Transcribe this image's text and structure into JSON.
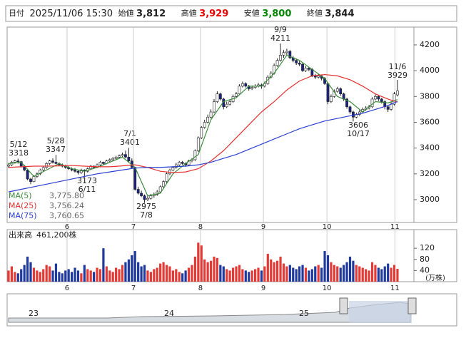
{
  "header": {
    "date_label": "日付",
    "datetime": "2025/11/06 15:30",
    "open_label": "始値",
    "open": "3,812",
    "high_label": "高値",
    "high": "3,929",
    "low_label": "安値",
    "low": "3,800",
    "close_label": "終値",
    "close": "3,844"
  },
  "chart_data": {
    "type": "candlestick",
    "candles": [
      [
        3260,
        3285,
        3245,
        3270
      ],
      [
        3270,
        3300,
        3260,
        3290
      ],
      [
        3290,
        3310,
        3280,
        3300
      ],
      [
        3300,
        3318,
        3280,
        3295
      ],
      [
        3295,
        3300,
        3250,
        3260
      ],
      [
        3260,
        3270,
        3220,
        3230
      ],
      [
        3230,
        3235,
        3150,
        3160
      ],
      [
        3160,
        3170,
        3120,
        3140
      ],
      [
        3140,
        3190,
        3135,
        3180
      ],
      [
        3180,
        3210,
        3170,
        3200
      ],
      [
        3200,
        3240,
        3190,
        3230
      ],
      [
        3230,
        3260,
        3220,
        3250
      ],
      [
        3250,
        3290,
        3240,
        3280
      ],
      [
        3280,
        3310,
        3270,
        3300
      ],
      [
        3300,
        3320,
        3280,
        3290
      ],
      [
        3290,
        3347,
        3275,
        3280
      ],
      [
        3280,
        3290,
        3260,
        3270
      ],
      [
        3270,
        3280,
        3250,
        3260
      ],
      [
        3260,
        3270,
        3240,
        3250
      ],
      [
        3250,
        3260,
        3230,
        3240
      ],
      [
        3240,
        3250,
        3220,
        3230
      ],
      [
        3230,
        3245,
        3210,
        3220
      ],
      [
        3220,
        3230,
        3195,
        3210
      ],
      [
        3210,
        3240,
        3200,
        3230
      ],
      [
        3230,
        3235,
        3173,
        3220
      ],
      [
        3220,
        3250,
        3210,
        3240
      ],
      [
        3240,
        3270,
        3230,
        3260
      ],
      [
        3260,
        3265,
        3240,
        3250
      ],
      [
        3250,
        3280,
        3245,
        3270
      ],
      [
        3270,
        3300,
        3260,
        3290
      ],
      [
        3290,
        3295,
        3270,
        3280
      ],
      [
        3280,
        3310,
        3275,
        3300
      ],
      [
        3300,
        3320,
        3290,
        3310
      ],
      [
        3310,
        3330,
        3300,
        3320
      ],
      [
        3320,
        3340,
        3310,
        3330
      ],
      [
        3330,
        3350,
        3320,
        3340
      ],
      [
        3340,
        3365,
        3330,
        3350
      ],
      [
        3350,
        3380,
        3320,
        3330
      ],
      [
        3330,
        3401,
        3290,
        3300
      ],
      [
        3300,
        3320,
        3240,
        3250
      ],
      [
        3250,
        3255,
        3070,
        3080
      ],
      [
        3080,
        3100,
        3040,
        3050
      ],
      [
        3050,
        3070,
        3020,
        3030
      ],
      [
        3030,
        3040,
        2975,
        3000
      ],
      [
        3000,
        3030,
        2990,
        3010
      ],
      [
        3010,
        3045,
        3000,
        3030
      ],
      [
        3030,
        3055,
        3015,
        3040
      ],
      [
        3040,
        3075,
        3030,
        3060
      ],
      [
        3060,
        3110,
        3050,
        3100
      ],
      [
        3100,
        3150,
        3090,
        3140
      ],
      [
        3140,
        3210,
        3130,
        3200
      ],
      [
        3200,
        3240,
        3190,
        3230
      ],
      [
        3230,
        3260,
        3220,
        3250
      ],
      [
        3250,
        3285,
        3240,
        3270
      ],
      [
        3270,
        3300,
        3260,
        3290
      ],
      [
        3290,
        3300,
        3270,
        3280
      ],
      [
        3280,
        3290,
        3255,
        3270
      ],
      [
        3270,
        3310,
        3260,
        3300
      ],
      [
        3300,
        3320,
        3290,
        3310
      ],
      [
        3310,
        3390,
        3300,
        3380
      ],
      [
        3380,
        3490,
        3370,
        3480
      ],
      [
        3480,
        3570,
        3470,
        3560
      ],
      [
        3560,
        3620,
        3550,
        3600
      ],
      [
        3600,
        3660,
        3590,
        3640
      ],
      [
        3640,
        3700,
        3630,
        3680
      ],
      [
        3680,
        3780,
        3670,
        3760
      ],
      [
        3760,
        3840,
        3750,
        3820
      ],
      [
        3820,
        3830,
        3770,
        3780
      ],
      [
        3780,
        3790,
        3700,
        3720
      ],
      [
        3720,
        3760,
        3710,
        3740
      ],
      [
        3740,
        3775,
        3730,
        3760
      ],
      [
        3760,
        3815,
        3750,
        3800
      ],
      [
        3800,
        3835,
        3790,
        3820
      ],
      [
        3820,
        3895,
        3810,
        3880
      ],
      [
        3880,
        3915,
        3870,
        3900
      ],
      [
        3900,
        3910,
        3870,
        3880
      ],
      [
        3880,
        3890,
        3845,
        3860
      ],
      [
        3860,
        3885,
        3850,
        3870
      ],
      [
        3870,
        3895,
        3860,
        3880
      ],
      [
        3880,
        3905,
        3870,
        3890
      ],
      [
        3890,
        3900,
        3860,
        3880
      ],
      [
        3880,
        3915,
        3870,
        3900
      ],
      [
        3900,
        3965,
        3890,
        3950
      ],
      [
        3950,
        3995,
        3940,
        3980
      ],
      [
        3980,
        4055,
        3970,
        4040
      ],
      [
        4040,
        4095,
        4030,
        4080
      ],
      [
        4080,
        4211,
        4070,
        4120
      ],
      [
        4120,
        4160,
        4100,
        4140
      ],
      [
        4140,
        4170,
        4120,
        4150
      ],
      [
        4150,
        4160,
        4090,
        4100
      ],
      [
        4100,
        4115,
        4065,
        4080
      ],
      [
        4080,
        4095,
        4045,
        4060
      ],
      [
        4060,
        4075,
        4035,
        4050
      ],
      [
        4050,
        4060,
        3990,
        4000
      ],
      [
        4000,
        4035,
        3990,
        4020
      ],
      [
        4020,
        4030,
        3995,
        4010
      ],
      [
        4010,
        4020,
        3950,
        3960
      ],
      [
        3960,
        3975,
        3935,
        3950
      ],
      [
        3950,
        3975,
        3940,
        3960
      ],
      [
        3960,
        3970,
        3925,
        3940
      ],
      [
        3940,
        3950,
        3890,
        3900
      ],
      [
        3900,
        3910,
        3740,
        3760
      ],
      [
        3760,
        3815,
        3750,
        3800
      ],
      [
        3800,
        3855,
        3790,
        3840
      ],
      [
        3840,
        3875,
        3830,
        3860
      ],
      [
        3860,
        3870,
        3805,
        3820
      ],
      [
        3820,
        3830,
        3765,
        3780
      ],
      [
        3780,
        3790,
        3705,
        3720
      ],
      [
        3720,
        3730,
        3665,
        3680
      ],
      [
        3680,
        3690,
        3606,
        3640
      ],
      [
        3640,
        3675,
        3630,
        3660
      ],
      [
        3660,
        3695,
        3650,
        3680
      ],
      [
        3680,
        3715,
        3670,
        3700
      ],
      [
        3700,
        3725,
        3690,
        3710
      ],
      [
        3710,
        3735,
        3700,
        3720
      ],
      [
        3720,
        3795,
        3710,
        3780
      ],
      [
        3780,
        3815,
        3770,
        3800
      ],
      [
        3800,
        3810,
        3765,
        3780
      ],
      [
        3780,
        3790,
        3745,
        3760
      ],
      [
        3760,
        3770,
        3700,
        3720
      ],
      [
        3720,
        3730,
        3680,
        3700
      ],
      [
        3700,
        3755,
        3690,
        3740
      ],
      [
        3740,
        3835,
        3730,
        3820
      ],
      [
        3812,
        3929,
        3800,
        3844
      ]
    ],
    "up_color": "#ffffff",
    "down_color": "#1a237e",
    "xlim": [
      -0.45,
      128.2
    ],
    "xticks": [
      {
        "value": 18.5,
        "label": "6"
      },
      {
        "value": 39.5,
        "label": "7"
      },
      {
        "value": 60.7,
        "label": "8"
      },
      {
        "value": 80.6,
        "label": "9"
      },
      {
        "value": 100.7,
        "label": "10"
      },
      {
        "value": 122.2,
        "label": "11"
      }
    ],
    "ylim": [
      2823,
      4338
    ],
    "yticks": [
      3000,
      3200,
      3400,
      3600,
      3800,
      4000,
      4200
    ],
    "grid": "x",
    "ma": [
      {
        "name": "MA(5)",
        "color": "#3c8c3c",
        "value_label": "3,775.80",
        "x": [
          0,
          4,
          8,
          12,
          16,
          20,
          24,
          28,
          32,
          36,
          40,
          44,
          48,
          52,
          56,
          60,
          64,
          68,
          72,
          76,
          80,
          84,
          88,
          92,
          96,
          100,
          104,
          108,
          112,
          116,
          120,
          123
        ],
        "values": [
          3280,
          3290,
          3180,
          3230,
          3280,
          3240,
          3220,
          3250,
          3290,
          3330,
          3250,
          3030,
          3050,
          3200,
          3280,
          3350,
          3620,
          3760,
          3790,
          3880,
          3880,
          3980,
          4120,
          4080,
          4010,
          3940,
          3800,
          3760,
          3680,
          3760,
          3750,
          3776
        ]
      },
      {
        "name": "MA(25)",
        "color": "#e53030",
        "value_label": "3,756.24",
        "x": [
          0,
          4,
          8,
          12,
          16,
          20,
          24,
          28,
          32,
          36,
          40,
          44,
          48,
          52,
          56,
          60,
          64,
          68,
          72,
          76,
          80,
          84,
          88,
          92,
          96,
          100,
          104,
          108,
          112,
          116,
          120,
          123
        ],
        "values": [
          3250,
          3255,
          3260,
          3260,
          3262,
          3265,
          3260,
          3255,
          3255,
          3262,
          3270,
          3250,
          3220,
          3210,
          3215,
          3240,
          3300,
          3380,
          3480,
          3580,
          3680,
          3760,
          3850,
          3920,
          3960,
          3970,
          3960,
          3930,
          3880,
          3820,
          3780,
          3756
        ]
      },
      {
        "name": "MA(75)",
        "color": "#2a3fd0",
        "value_label": "3,760.65",
        "x": [
          0,
          4,
          8,
          12,
          16,
          20,
          24,
          28,
          32,
          36,
          40,
          44,
          48,
          52,
          56,
          60,
          64,
          68,
          72,
          76,
          80,
          84,
          88,
          92,
          96,
          100,
          104,
          108,
          112,
          116,
          120,
          123
        ],
        "values": [
          3060,
          3080,
          3100,
          3120,
          3140,
          3160,
          3180,
          3200,
          3215,
          3230,
          3245,
          3250,
          3250,
          3255,
          3260,
          3270,
          3290,
          3320,
          3350,
          3390,
          3430,
          3470,
          3510,
          3550,
          3580,
          3610,
          3630,
          3650,
          3670,
          3700,
          3730,
          3761
        ]
      }
    ],
    "annotations": [
      [
        "5/12",
        3318
      ],
      [
        "5/28",
        3347
      ],
      [
        "3173",
        "6/11"
      ],
      [
        "7/1",
        3401
      ],
      [
        "2975",
        "7/8"
      ],
      [
        "9/9",
        4211
      ],
      [
        "3606",
        "10/17"
      ],
      [
        "11/6",
        3929
      ]
    ],
    "volume": {
      "label": "出来高",
      "total": "461,200株",
      "unit": "(万株)",
      "up_color": "#e53935",
      "down_color": "#1f3a9e",
      "ylim": [
        0,
        187
      ],
      "yticks": [
        40,
        80,
        120
      ],
      "values": [
        40,
        55,
        35,
        30,
        45,
        60,
        90,
        70,
        50,
        40,
        35,
        45,
        60,
        55,
        40,
        65,
        35,
        30,
        40,
        45,
        35,
        50,
        40,
        30,
        60,
        45,
        40,
        35,
        50,
        45,
        120,
        55,
        40,
        35,
        50,
        45,
        60,
        70,
        80,
        95,
        110,
        70,
        55,
        60,
        40,
        35,
        45,
        50,
        65,
        70,
        60,
        55,
        40,
        45,
        35,
        30,
        40,
        50,
        60,
        90,
        140,
        130,
        80,
        70,
        75,
        90,
        85,
        60,
        55,
        45,
        40,
        50,
        55,
        60,
        45,
        40,
        35,
        40,
        45,
        50,
        40,
        55,
        100,
        80,
        70,
        75,
        90,
        65,
        55,
        60,
        50,
        45,
        55,
        60,
        50,
        40,
        45,
        55,
        60,
        50,
        110,
        95,
        70,
        60,
        55,
        50,
        60,
        70,
        90,
        75,
        60,
        55,
        50,
        45,
        40,
        70,
        60,
        50,
        45,
        55,
        65,
        50,
        60,
        46
      ]
    },
    "navigator": {
      "labels": [
        "23",
        "24",
        "25"
      ]
    }
  }
}
